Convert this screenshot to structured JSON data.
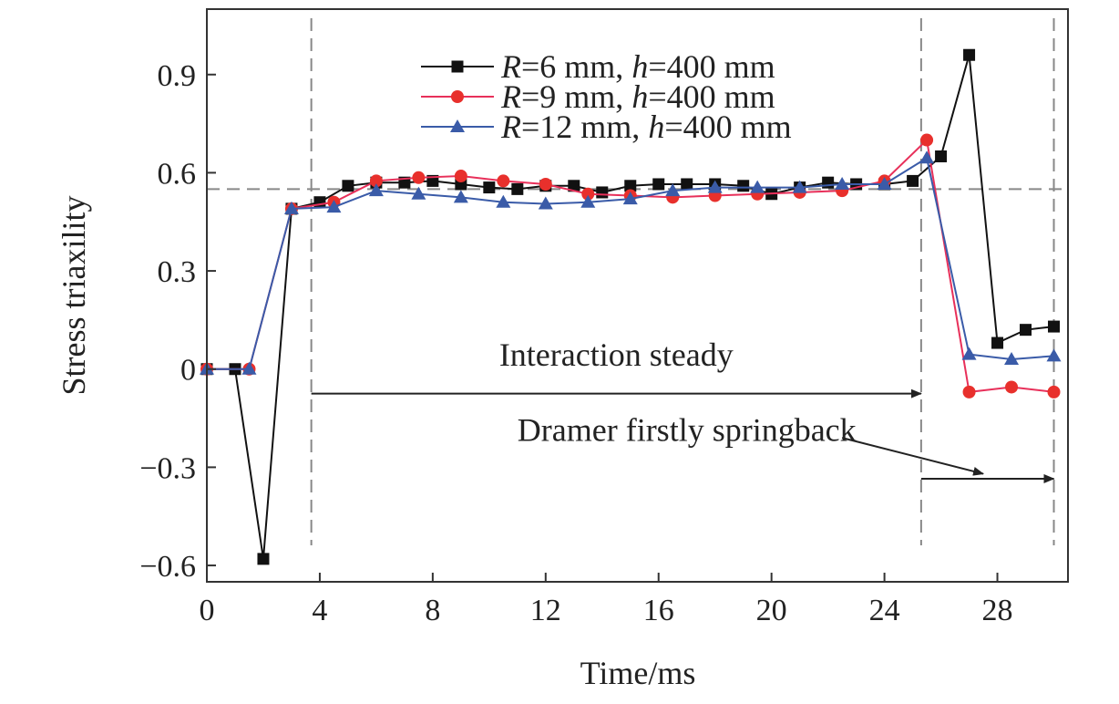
{
  "chart_data": {
    "type": "line",
    "xlabel": "Time/ms",
    "ylabel": "Stress triaxility",
    "xlim": [
      0,
      30.5
    ],
    "ylim": [
      -0.65,
      1.1
    ],
    "xticks": [
      0,
      4,
      8,
      12,
      16,
      20,
      24,
      28
    ],
    "xtick_labels": [
      "0",
      "4",
      "8",
      "12",
      "16",
      "20",
      "24",
      "28"
    ],
    "yticks": [
      -0.6,
      -0.3,
      0,
      0.3,
      0.6,
      0.9
    ],
    "ytick_labels": [
      "−0.6",
      "−0.3",
      "0",
      "0.3",
      "0.6",
      "0.9"
    ],
    "grid": false,
    "legend_position": "top-center",
    "series": [
      {
        "name_parts": [
          "R",
          "=6 mm, ",
          "h",
          "=400 mm"
        ],
        "color": "#111111",
        "marker": "square",
        "points": [
          [
            0,
            0
          ],
          [
            1,
            0
          ],
          [
            2,
            -0.58
          ],
          [
            3,
            0.49
          ],
          [
            4,
            0.51
          ],
          [
            5,
            0.56
          ],
          [
            6,
            0.57
          ],
          [
            7,
            0.57
          ],
          [
            8,
            0.575
          ],
          [
            9,
            0.565
          ],
          [
            10,
            0.555
          ],
          [
            11,
            0.55
          ],
          [
            12,
            0.56
          ],
          [
            13,
            0.56
          ],
          [
            14,
            0.54
          ],
          [
            15,
            0.56
          ],
          [
            16,
            0.565
          ],
          [
            17,
            0.565
          ],
          [
            18,
            0.565
          ],
          [
            19,
            0.56
          ],
          [
            20,
            0.535
          ],
          [
            21,
            0.555
          ],
          [
            22,
            0.57
          ],
          [
            23,
            0.565
          ],
          [
            24,
            0.565
          ],
          [
            25,
            0.575
          ],
          [
            26,
            0.65
          ],
          [
            27,
            0.96
          ],
          [
            28,
            0.08
          ],
          [
            29,
            0.12
          ],
          [
            30,
            0.13
          ]
        ]
      },
      {
        "name_parts": [
          "R",
          "=9 mm, ",
          "h",
          "=400 mm"
        ],
        "color": "#e8302c",
        "line_color": "#e8305a",
        "marker": "circle",
        "points": [
          [
            0,
            0
          ],
          [
            1.5,
            0
          ],
          [
            3,
            0.49
          ],
          [
            4.5,
            0.51
          ],
          [
            6,
            0.575
          ],
          [
            7.5,
            0.585
          ],
          [
            9,
            0.59
          ],
          [
            10.5,
            0.575
          ],
          [
            12,
            0.565
          ],
          [
            13.5,
            0.535
          ],
          [
            15,
            0.53
          ],
          [
            16.5,
            0.525
          ],
          [
            18,
            0.53
          ],
          [
            19.5,
            0.535
          ],
          [
            21,
            0.54
          ],
          [
            22.5,
            0.545
          ],
          [
            24,
            0.575
          ],
          [
            25.5,
            0.7
          ],
          [
            27,
            -0.07
          ],
          [
            28.5,
            -0.055
          ],
          [
            30,
            -0.07
          ]
        ]
      },
      {
        "name_parts": [
          "R",
          "=12 mm, ",
          "h",
          "=400 mm"
        ],
        "color": "#3a5ba8",
        "marker": "triangle",
        "points": [
          [
            0,
            0
          ],
          [
            1.5,
            0
          ],
          [
            3,
            0.49
          ],
          [
            4.5,
            0.495
          ],
          [
            6,
            0.545
          ],
          [
            7.5,
            0.535
          ],
          [
            9,
            0.525
          ],
          [
            10.5,
            0.51
          ],
          [
            12,
            0.505
          ],
          [
            13.5,
            0.51
          ],
          [
            15,
            0.52
          ],
          [
            16.5,
            0.545
          ],
          [
            18,
            0.555
          ],
          [
            19.5,
            0.555
          ],
          [
            21,
            0.555
          ],
          [
            22.5,
            0.565
          ],
          [
            24,
            0.565
          ],
          [
            25.5,
            0.645
          ],
          [
            27,
            0.045
          ],
          [
            28.5,
            0.03
          ],
          [
            30,
            0.04
          ]
        ]
      }
    ],
    "reference_lines": {
      "horizontal_y": 0.55,
      "vertical_x": [
        3.7,
        25.3,
        30
      ]
    },
    "annotations": [
      {
        "text": "Interaction steady",
        "x": 14.5,
        "y": 0.01,
        "arrow": {
          "from": [
            3.7,
            -0.075
          ],
          "to": [
            25.3,
            -0.075
          ]
        }
      },
      {
        "text": "Dramer firstly springback",
        "x": 17,
        "y": -0.22,
        "arrow": {
          "from": [
            25.3,
            -0.335
          ],
          "to": [
            30,
            -0.335
          ]
        },
        "leader": {
          "from": [
            22.5,
            -0.21
          ],
          "to": [
            27.5,
            -0.32
          ]
        }
      }
    ]
  }
}
